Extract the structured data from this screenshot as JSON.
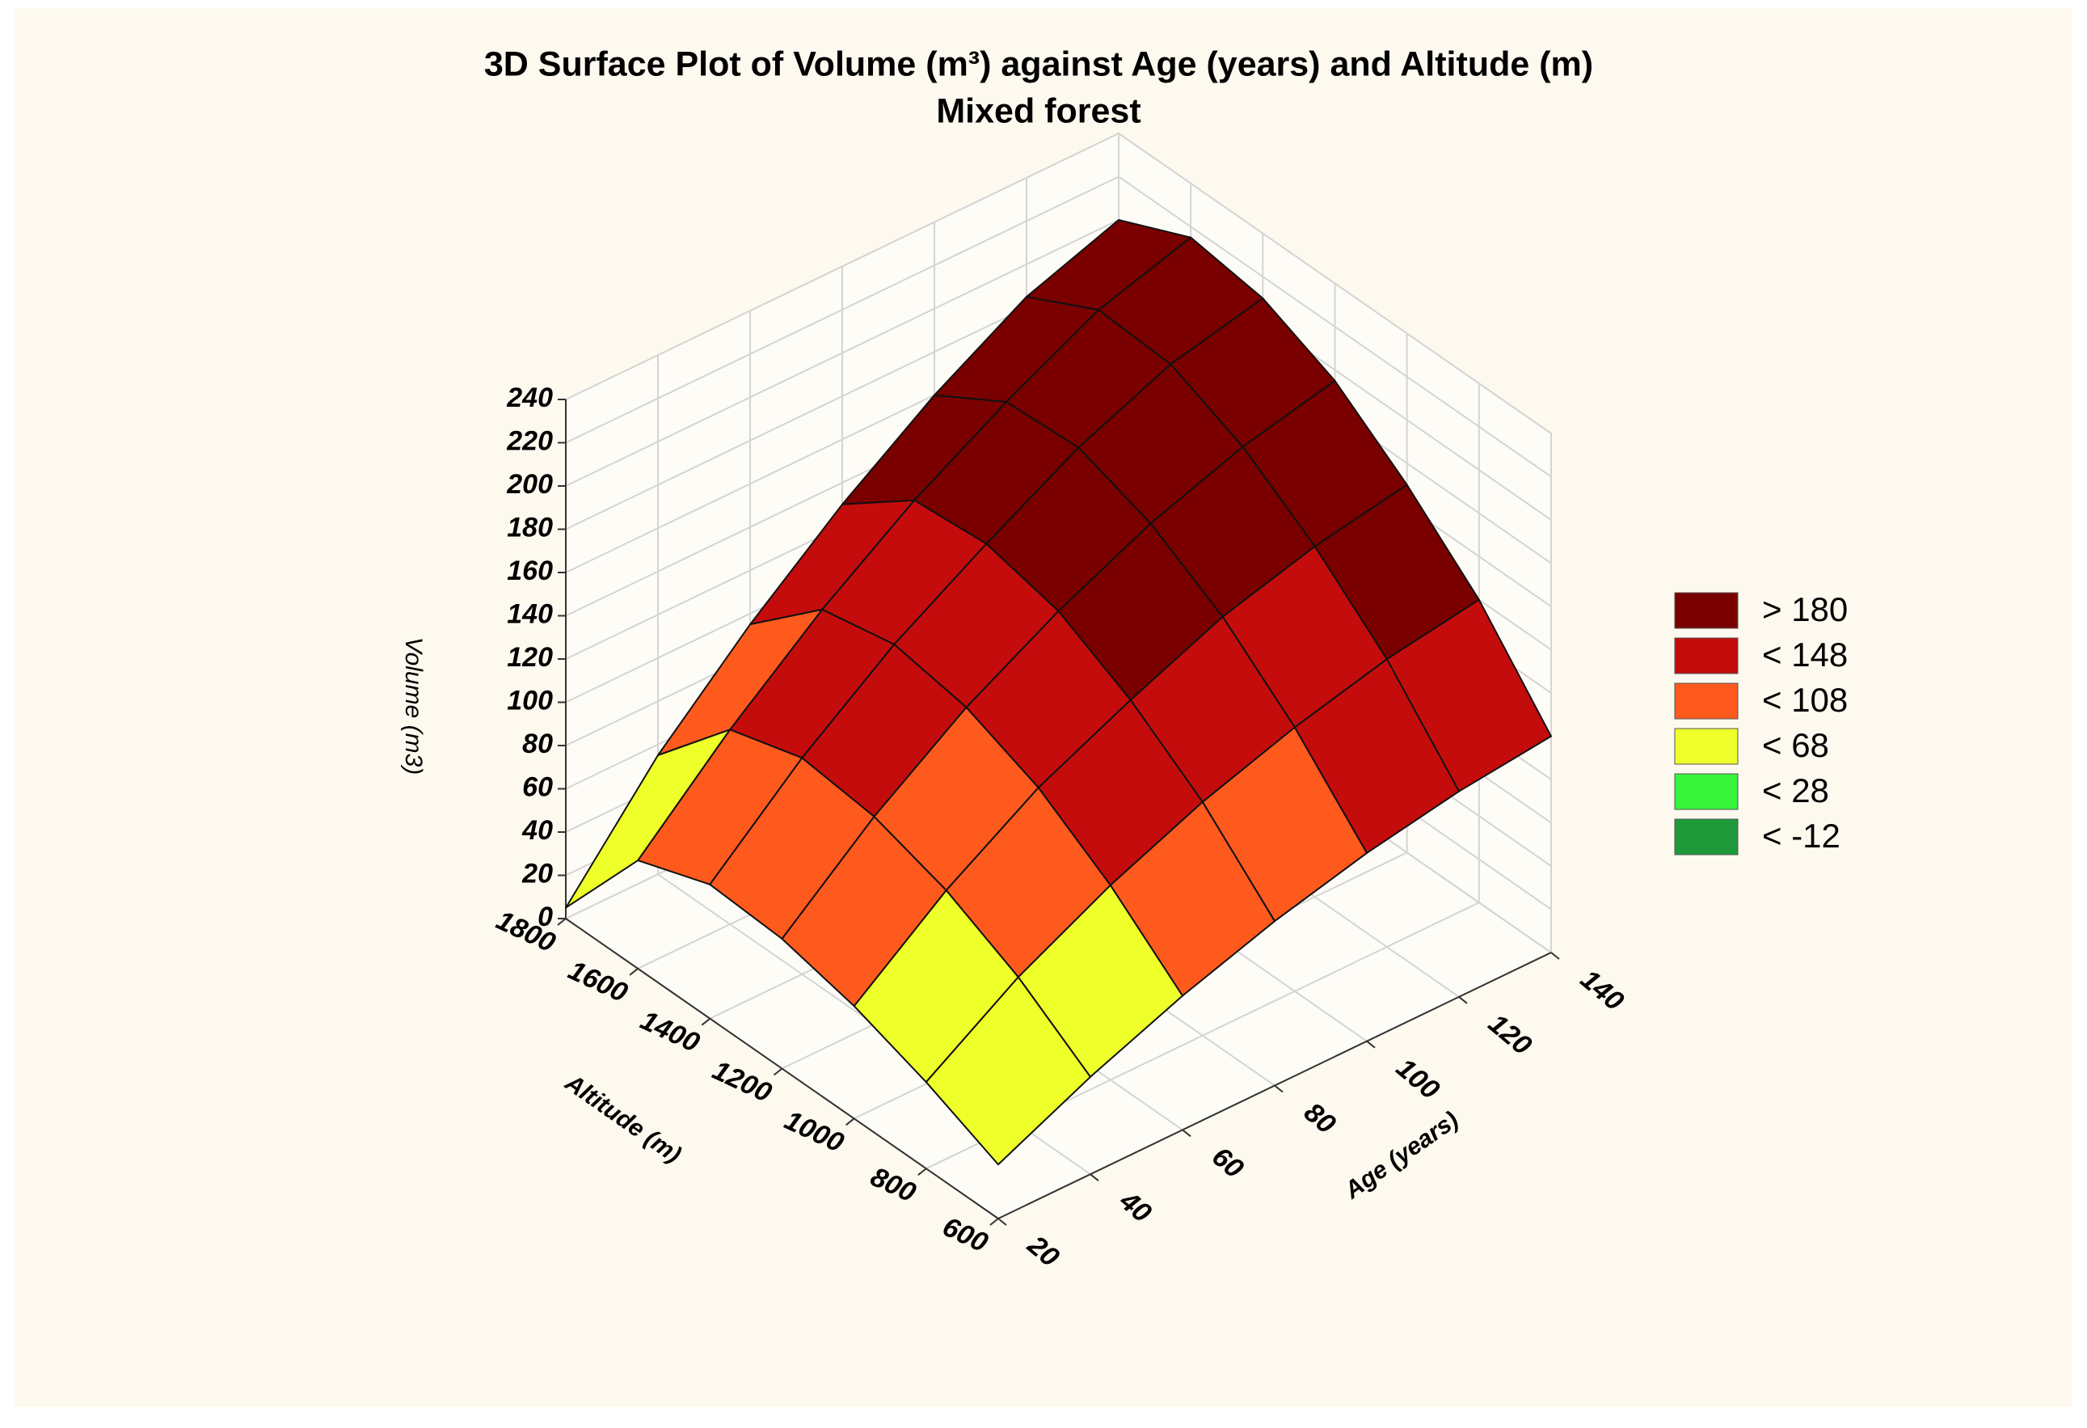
{
  "chart_data": {
    "type": "surface",
    "title": "3D Surface Plot of Volume (m³) against Age (years) and Altitude (m)",
    "subtitle": "Mixed forest",
    "xlabel": "Age (years)",
    "ylabel": "Altitude (m)",
    "zlabel": "Volume (m3)",
    "x": [
      20,
      40,
      60,
      80,
      100,
      120,
      140
    ],
    "y": [
      600,
      800,
      1000,
      1200,
      1400,
      1600,
      1800
    ],
    "z": [
      [
        25,
        40,
        52,
        60,
        62,
        50,
        5
      ],
      [
        45,
        68,
        85,
        96,
        100,
        90,
        55
      ],
      [
        62,
        90,
        112,
        126,
        132,
        125,
        95
      ],
      [
        76,
        108,
        132,
        150,
        158,
        155,
        130
      ],
      [
        87,
        122,
        150,
        170,
        182,
        180,
        160
      ],
      [
        95,
        133,
        162,
        185,
        200,
        202,
        185
      ],
      [
        100,
        140,
        170,
        195,
        210,
        215,
        200
      ]
    ],
    "xlim": [
      20,
      140
    ],
    "xticks": [
      20,
      40,
      60,
      80,
      100,
      120,
      140
    ],
    "ylim": [
      600,
      1800
    ],
    "yticks": [
      600,
      800,
      1000,
      1200,
      1400,
      1600,
      1800
    ],
    "zlim": [
      0,
      240
    ],
    "zticks": [
      0,
      20,
      40,
      60,
      80,
      100,
      120,
      140,
      160,
      180,
      200,
      220,
      240
    ],
    "grid": true,
    "legend_position": "right",
    "legend": [
      {
        "value": 180,
        "label": "> 180",
        "color": "#7a0000"
      },
      {
        "value": 148,
        "label": "< 148",
        "color": "#c40c0c"
      },
      {
        "value": 108,
        "label": "< 108",
        "color": "#ff5a1e"
      },
      {
        "value": 68,
        "label": "< 68",
        "color": "#eeff2a"
      },
      {
        "value": 28,
        "label": "< 28",
        "color": "#36f53a"
      },
      {
        "value": -12,
        "label": "< -12",
        "color": "#1f9a3a"
      }
    ]
  }
}
